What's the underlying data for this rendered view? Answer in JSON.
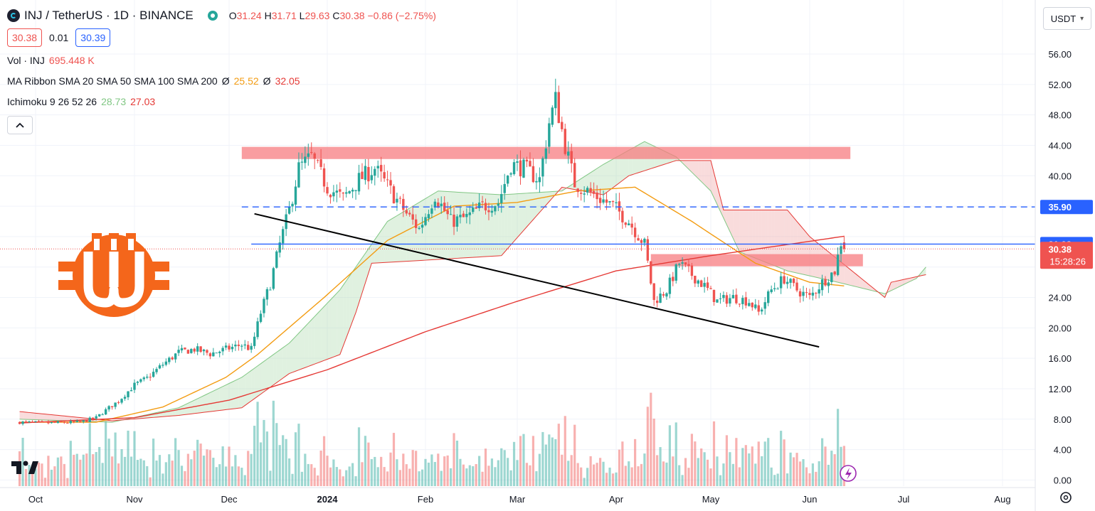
{
  "header": {
    "symbol_title": "INJ / TetherUS · 1D · BINANCE",
    "ohlc": {
      "o_label": "O",
      "o": "31.24",
      "h_label": "H",
      "h": "31.71",
      "l_label": "L",
      "l": "29.63",
      "c_label": "C",
      "c": "30.38",
      "change": "−0.86 (−2.75%)"
    },
    "bid": "30.38",
    "spread": "0.01",
    "ask": "30.39",
    "currency_button": "USDT"
  },
  "indicators": {
    "volume": {
      "label": "Vol · INJ",
      "value": "695.448 K"
    },
    "ma_ribbon": {
      "label": "MA Ribbon SMA 20 SMA 50 SMA 100 SMA 200",
      "sym1": "Ø",
      "value1": "25.52",
      "sym2": "Ø",
      "value2": "32.05"
    },
    "ichimoku": {
      "label": "Ichimoku 9 26 52 26",
      "value1": "28.73",
      "value2": "27.03"
    }
  },
  "colors": {
    "up": "#26a69a",
    "down": "#ef5350",
    "sma_short": "#f39c12",
    "sma_long": "#e53935",
    "zone": "#f77c80",
    "support_line": "#2962ff",
    "trendline": "#000000",
    "logo": "#f4661b"
  },
  "chart_data": {
    "type": "candlestick",
    "y_axis": {
      "min": -0.8,
      "max": 57.5,
      "ticks": [
        "56.00",
        "52.00",
        "48.00",
        "44.00",
        "40.00",
        "35.90",
        "31.02",
        "30.38",
        "24.00",
        "20.00",
        "16.00",
        "12.00",
        "8.00",
        "4.00",
        "0.00"
      ]
    },
    "x_axis": {
      "labels": [
        "Oct",
        "Nov",
        "Dec",
        "2024",
        "Feb",
        "Mar",
        "Apr",
        "May",
        "Jun",
        "Jul",
        "Aug"
      ]
    },
    "price_labels": [
      {
        "value": 35.9,
        "text": "35.90",
        "color": "#2962ff"
      },
      {
        "value": 31.02,
        "text": "31.02",
        "color": "#2962ff"
      },
      {
        "value": 30.38,
        "text": "30.38",
        "sub": "15:28:26",
        "color": "#ef5350"
      }
    ],
    "levels": [
      {
        "name": "dashed-resistance",
        "value": 35.9,
        "style": "dashed"
      },
      {
        "name": "support-line",
        "value": 31.02,
        "style": "solid"
      }
    ],
    "zones": [
      {
        "name": "upper-zone",
        "from": "2023-12-05",
        "to": "2024-06-14",
        "low": 42.2,
        "high": 43.8
      },
      {
        "name": "lower-zone",
        "from": "2024-04-12",
        "to": "2024-06-18",
        "low": 28.1,
        "high": 29.7
      }
    ],
    "trendline": {
      "from": [
        "2023-12-09",
        35.0
      ],
      "to": [
        "2024-06-04",
        17.5
      ]
    },
    "last_price": 30.38,
    "month_anchors": [
      {
        "date": "2023-10-01",
        "label": "Oct"
      },
      {
        "date": "2023-11-01",
        "label": "Nov"
      },
      {
        "date": "2023-12-01",
        "label": "Dec"
      },
      {
        "date": "2024-01-01",
        "label": "2024"
      },
      {
        "date": "2024-02-01",
        "label": "Feb"
      },
      {
        "date": "2024-03-01",
        "label": "Mar"
      },
      {
        "date": "2024-04-01",
        "label": "Apr"
      },
      {
        "date": "2024-05-01",
        "label": "May"
      },
      {
        "date": "2024-06-01",
        "label": "Jun"
      },
      {
        "date": "2024-07-01",
        "label": "Jul"
      },
      {
        "date": "2024-08-01",
        "label": "Aug"
      }
    ],
    "close_keyframes": [
      [
        "2023-09-26",
        7.6
      ],
      [
        "2023-10-05",
        7.5
      ],
      [
        "2023-10-15",
        7.6
      ],
      [
        "2023-10-20",
        8.2
      ],
      [
        "2023-10-24",
        9.5
      ],
      [
        "2023-10-27",
        10.4
      ],
      [
        "2023-11-01",
        12.5
      ],
      [
        "2023-11-05",
        13.4
      ],
      [
        "2023-11-10",
        15.2
      ],
      [
        "2023-11-15",
        16.8
      ],
      [
        "2023-11-20",
        17.2
      ],
      [
        "2023-11-25",
        16.6
      ],
      [
        "2023-11-30",
        17.2
      ],
      [
        "2023-12-05",
        17.8
      ],
      [
        "2023-12-08",
        17.2
      ],
      [
        "2023-12-11",
        22.0
      ],
      [
        "2023-12-14",
        25.8
      ],
      [
        "2023-12-17",
        31.0
      ],
      [
        "2023-12-20",
        35.5
      ],
      [
        "2023-12-23",
        41.0
      ],
      [
        "2023-12-27",
        42.5
      ],
      [
        "2024-01-01",
        38.5
      ],
      [
        "2024-01-06",
        37.0
      ],
      [
        "2024-01-11",
        39.5
      ],
      [
        "2024-01-16",
        41.0
      ],
      [
        "2024-01-21",
        38.0
      ],
      [
        "2024-01-26",
        35.0
      ],
      [
        "2024-01-30",
        33.0
      ],
      [
        "2024-02-04",
        37.5
      ],
      [
        "2024-02-09",
        34.0
      ],
      [
        "2024-02-14",
        34.5
      ],
      [
        "2024-02-19",
        36.0
      ],
      [
        "2024-02-24",
        36.5
      ],
      [
        "2024-02-28",
        41.5
      ],
      [
        "2024-03-03",
        41.0
      ],
      [
        "2024-03-08",
        39.5
      ],
      [
        "2024-03-11",
        47.0
      ],
      [
        "2024-03-13",
        50.0
      ],
      [
        "2024-03-16",
        44.0
      ],
      [
        "2024-03-19",
        39.0
      ],
      [
        "2024-03-23",
        38.0
      ],
      [
        "2024-03-27",
        37.0
      ],
      [
        "2024-03-31",
        36.0
      ],
      [
        "2024-04-05",
        34.0
      ],
      [
        "2024-04-10",
        31.0
      ],
      [
        "2024-04-13",
        23.5
      ],
      [
        "2024-04-17",
        25.0
      ],
      [
        "2024-04-21",
        28.5
      ],
      [
        "2024-04-25",
        27.0
      ],
      [
        "2024-04-29",
        25.5
      ],
      [
        "2024-05-03",
        23.5
      ],
      [
        "2024-05-08",
        24.0
      ],
      [
        "2024-05-13",
        23.5
      ],
      [
        "2024-05-16",
        22.0
      ],
      [
        "2024-05-20",
        25.0
      ],
      [
        "2024-05-24",
        26.5
      ],
      [
        "2024-05-28",
        25.0
      ],
      [
        "2024-06-01",
        24.0
      ],
      [
        "2024-06-05",
        26.0
      ],
      [
        "2024-06-09",
        27.5
      ],
      [
        "2024-06-11",
        31.24
      ],
      [
        "2024-06-12",
        30.38
      ]
    ],
    "sma_short_keyframes": [
      [
        "2023-09-26",
        7.6
      ],
      [
        "2023-10-20",
        7.6
      ],
      [
        "2023-11-10",
        9.6
      ],
      [
        "2023-11-30",
        13.5
      ],
      [
        "2023-12-10",
        16.5
      ],
      [
        "2023-12-31",
        24.0
      ],
      [
        "2024-01-20",
        31.5
      ],
      [
        "2024-02-10",
        36.0
      ],
      [
        "2024-03-01",
        36.5
      ],
      [
        "2024-03-20",
        38.0
      ],
      [
        "2024-04-07",
        38.5
      ],
      [
        "2024-04-25",
        34.0
      ],
      [
        "2024-05-15",
        28.5
      ],
      [
        "2024-06-01",
        26.0
      ],
      [
        "2024-06-12",
        25.52
      ]
    ],
    "sma_long_keyframes": [
      [
        "2023-09-26",
        7.5
      ],
      [
        "2023-11-01",
        8.2
      ],
      [
        "2023-12-01",
        10.5
      ],
      [
        "2024-01-01",
        14.5
      ],
      [
        "2024-02-01",
        19.5
      ],
      [
        "2024-03-01",
        23.5
      ],
      [
        "2024-04-01",
        27.5
      ],
      [
        "2024-05-01",
        29.5
      ],
      [
        "2024-06-12",
        32.05
      ]
    ],
    "cloud_a_keyframes": [
      [
        "2023-09-26",
        8.0
      ],
      [
        "2023-10-25",
        7.6
      ],
      [
        "2023-11-15",
        9.5
      ],
      [
        "2023-12-05",
        13.5
      ],
      [
        "2023-12-20",
        18.0
      ],
      [
        "2024-01-05",
        25.0
      ],
      [
        "2024-01-20",
        34.0
      ],
      [
        "2024-02-05",
        38.0
      ],
      [
        "2024-02-25",
        37.5
      ],
      [
        "2024-03-15",
        38.0
      ],
      [
        "2024-03-28",
        41.5
      ],
      [
        "2024-04-10",
        44.5
      ],
      [
        "2024-04-20",
        42.5
      ],
      [
        "2024-05-01",
        38.0
      ],
      [
        "2024-05-10",
        30.0
      ],
      [
        "2024-05-25",
        27.5
      ],
      [
        "2024-06-10",
        26.0
      ],
      [
        "2024-06-25",
        24.5
      ],
      [
        "2024-07-05",
        26.5
      ],
      [
        "2024-07-08",
        28.0
      ]
    ],
    "cloud_b_keyframes": [
      [
        "2023-09-26",
        9.0
      ],
      [
        "2023-10-25",
        7.8
      ],
      [
        "2023-11-15",
        8.5
      ],
      [
        "2023-12-05",
        9.5
      ],
      [
        "2023-12-20",
        14.0
      ],
      [
        "2024-01-05",
        16.5
      ],
      [
        "2024-01-10",
        22.0
      ],
      [
        "2024-01-15",
        28.5
      ],
      [
        "2024-02-05",
        29.0
      ],
      [
        "2024-02-25",
        29.5
      ],
      [
        "2024-03-15",
        38.5
      ],
      [
        "2024-03-28",
        37.5
      ],
      [
        "2024-04-05",
        40.0
      ],
      [
        "2024-04-20",
        42.0
      ],
      [
        "2024-05-01",
        42.0
      ],
      [
        "2024-05-05",
        35.5
      ],
      [
        "2024-05-25",
        35.5
      ],
      [
        "2024-06-01",
        32.0
      ],
      [
        "2024-06-10",
        29.0
      ],
      [
        "2024-06-25",
        24.0
      ],
      [
        "2024-06-27",
        26.0
      ],
      [
        "2024-07-08",
        27.0
      ]
    ],
    "volume_scale": {
      "note": "volume bars drawn in lower pane, relative heights"
    }
  }
}
